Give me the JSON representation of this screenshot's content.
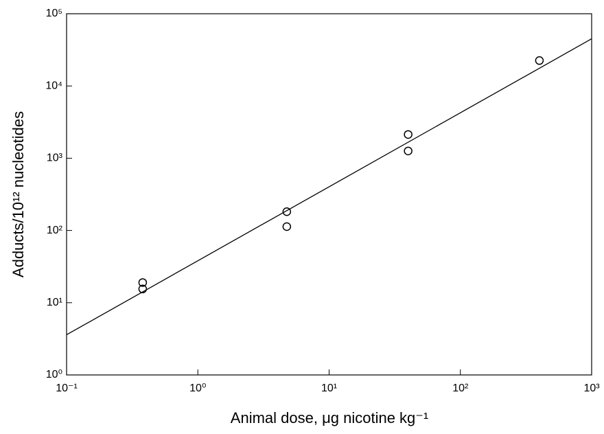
{
  "chart_data": {
    "type": "scatter",
    "xlabel": "Animal dose, μg nicotine kg⁻¹",
    "ylabel": "Adducts/10¹² nucleotides",
    "xscale": "log",
    "yscale": "log",
    "xlim": [
      0.1,
      1000
    ],
    "ylim": [
      1,
      100000
    ],
    "xticks": [
      {
        "value": 0.1,
        "label": "10⁻¹"
      },
      {
        "value": 1,
        "label": "10⁰"
      },
      {
        "value": 10,
        "label": "10¹"
      },
      {
        "value": 100,
        "label": "10²"
      },
      {
        "value": 1000,
        "label": "10³"
      }
    ],
    "yticks": [
      {
        "value": 1,
        "label": "10⁰"
      },
      {
        "value": 10,
        "label": "10¹"
      },
      {
        "value": 100,
        "label": "10²"
      },
      {
        "value": 1000,
        "label": "10³"
      },
      {
        "value": 10000,
        "label": "10⁴"
      },
      {
        "value": 100000,
        "label": "10⁵"
      }
    ],
    "color": "#000000",
    "series": [
      {
        "type": "scatter",
        "x": [
          0.38,
          0.38,
          4.76,
          4.76,
          40,
          40,
          400
        ],
        "values": [
          19,
          15.5,
          182,
          113,
          2130,
          1260,
          22500
        ]
      },
      {
        "type": "line",
        "x": [
          0.1,
          1000
        ],
        "values": [
          3.6,
          45000
        ]
      }
    ]
  }
}
